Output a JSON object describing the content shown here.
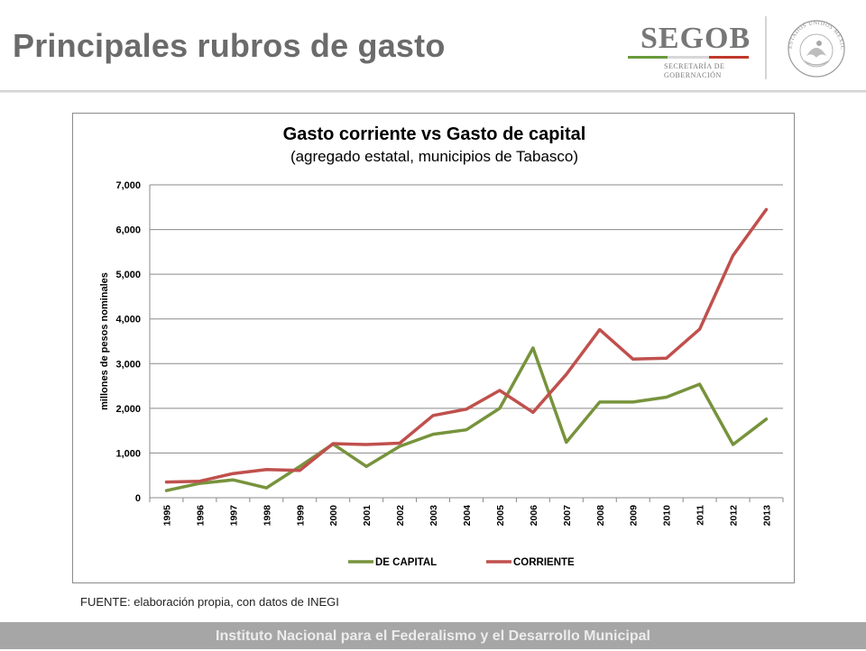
{
  "slide": {
    "title": "Principales rubros de gasto",
    "source": "FUENTE: elaboración propia, con datos de INEGI",
    "footer": "Instituto Nacional para el Federalismo y el Desarrollo Municipal"
  },
  "logo": {
    "wordmark": "SEGOB",
    "subline1": "SECRETARÍA DE",
    "subline2": "GOBERNACIÓN",
    "seal_text": "ESTADOS UNIDOS MEXICANOS",
    "colors": {
      "green": "#6a9a3c",
      "red": "#c0392b",
      "gray": "#777777"
    }
  },
  "chart_data": {
    "type": "line",
    "title": "Gasto corriente vs Gasto de capital",
    "subtitle": "(agregado estatal, municipios de Tabasco)",
    "xlabel": "",
    "ylabel": "millones de pesos nominales",
    "ylim": [
      0,
      7000
    ],
    "yticks": [
      0,
      1000,
      2000,
      3000,
      4000,
      5000,
      6000,
      7000
    ],
    "ytick_labels": [
      "0",
      "1,000",
      "2,000",
      "3,000",
      "4,000",
      "5,000",
      "6,000",
      "7,000"
    ],
    "grid": "horizontal",
    "legend_position": "bottom",
    "x": [
      "1995",
      "1996",
      "1997",
      "1998",
      "1999",
      "2000",
      "2001",
      "2002",
      "2003",
      "2004",
      "2005",
      "2006",
      "2007",
      "2008",
      "2009",
      "2010",
      "2011",
      "2012",
      "2013"
    ],
    "series": [
      {
        "name": "DE CAPITAL",
        "color": "#77933c",
        "values": [
          160,
          320,
          400,
          220,
          700,
          1200,
          700,
          1150,
          1420,
          1520,
          2000,
          3350,
          1240,
          2140,
          2140,
          2250,
          2540,
          1190,
          1760
        ]
      },
      {
        "name": "CORRIENTE",
        "color": "#c0504d",
        "values": [
          350,
          370,
          540,
          630,
          610,
          1210,
          1190,
          1220,
          1840,
          1980,
          2400,
          1910,
          2760,
          3760,
          3100,
          3120,
          3770,
          5420,
          6450
        ]
      }
    ]
  }
}
